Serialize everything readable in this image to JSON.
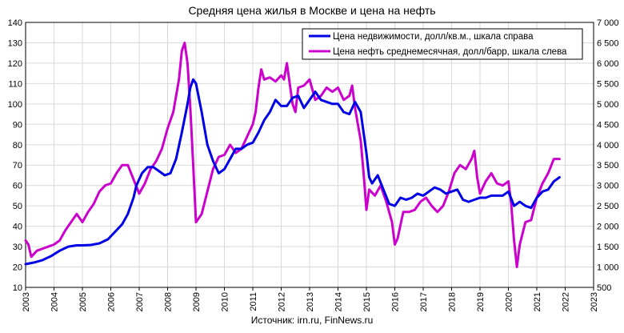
{
  "chart_data": {
    "type": "line",
    "title": "Средняя цена жилья в Москве и цена на нефть",
    "source": "Источник: irn.ru, FinNews.ru",
    "grid": true,
    "legend_position": "top-right",
    "x_ticks": [
      "2003",
      "2004",
      "2005",
      "2006",
      "2007",
      "2008",
      "2009",
      "2010",
      "2011",
      "2012",
      "2013",
      "2014",
      "2015",
      "2016",
      "2017",
      "2018",
      "2019",
      "2020",
      "2021",
      "2022",
      "2023"
    ],
    "xlim": [
      2003,
      2023
    ],
    "ylim_left": [
      10,
      140
    ],
    "yticks_left": [
      "10",
      "20",
      "30",
      "40",
      "50",
      "60",
      "70",
      "80",
      "90",
      "100",
      "110",
      "120",
      "130",
      "140"
    ],
    "ylim_right": [
      500,
      7000
    ],
    "yticks_right": [
      "500",
      "1 000",
      "1 500",
      "2 000",
      "2 500",
      "3 000",
      "3 500",
      "4 000",
      "4 500",
      "5 000",
      "5 500",
      "6 000",
      "6 500",
      "7 000"
    ],
    "series": [
      {
        "name": "Цена недвижимости, долл/кв.м., шкала справа",
        "axis": "right",
        "color": "#0000e6",
        "x": [
          2003.0,
          2003.3,
          2003.6,
          2003.9,
          2004.2,
          2004.5,
          2004.8,
          2005.0,
          2005.3,
          2005.6,
          2005.9,
          2006.2,
          2006.4,
          2006.6,
          2006.8,
          2006.9,
          2007.1,
          2007.3,
          2007.5,
          2007.7,
          2007.9,
          2008.1,
          2008.3,
          2008.5,
          2008.7,
          2008.8,
          2008.9,
          2009.0,
          2009.2,
          2009.4,
          2009.6,
          2009.8,
          2010.0,
          2010.2,
          2010.4,
          2010.6,
          2010.8,
          2011.0,
          2011.2,
          2011.4,
          2011.6,
          2011.8,
          2012.0,
          2012.2,
          2012.4,
          2012.6,
          2012.8,
          2013.0,
          2013.2,
          2013.4,
          2013.6,
          2013.8,
          2014.0,
          2014.2,
          2014.4,
          2014.6,
          2014.8,
          2015.0,
          2015.1,
          2015.2,
          2015.4,
          2015.6,
          2015.8,
          2016.0,
          2016.2,
          2016.4,
          2016.6,
          2016.8,
          2017.0,
          2017.2,
          2017.4,
          2017.6,
          2017.8,
          2018.0,
          2018.2,
          2018.4,
          2018.6,
          2018.8,
          2019.0,
          2019.2,
          2019.4,
          2019.6,
          2019.8,
          2020.0,
          2020.2,
          2020.4,
          2020.6,
          2020.8,
          2021.0,
          2021.2,
          2021.4,
          2021.6,
          2021.8
        ],
        "values": [
          1070,
          1110,
          1170,
          1270,
          1400,
          1500,
          1530,
          1530,
          1540,
          1580,
          1680,
          1900,
          2050,
          2300,
          2700,
          3000,
          3300,
          3450,
          3450,
          3350,
          3250,
          3300,
          3650,
          4300,
          5000,
          5400,
          5600,
          5500,
          4800,
          4000,
          3600,
          3300,
          3400,
          3650,
          3900,
          3900,
          4000,
          4050,
          4300,
          4600,
          4800,
          5100,
          4950,
          4950,
          5150,
          5200,
          4900,
          5100,
          5300,
          5100,
          5050,
          5000,
          5000,
          4800,
          4750,
          5050,
          4800,
          3800,
          3200,
          3050,
          3250,
          2900,
          2550,
          2500,
          2700,
          2650,
          2700,
          2800,
          2750,
          2850,
          2950,
          2900,
          2800,
          2850,
          2900,
          2650,
          2600,
          2650,
          2700,
          2700,
          2750,
          2750,
          2750,
          2850,
          2500,
          2600,
          2500,
          2450,
          2700,
          2850,
          2900,
          3100,
          3200
        ]
      },
      {
        "name": "Цена нефть среднемесячная, долл/барр, шкала слева",
        "axis": "left",
        "color": "#cc00cc",
        "x": [
          2003.0,
          2003.1,
          2003.2,
          2003.4,
          2003.6,
          2003.8,
          2004.0,
          2004.2,
          2004.4,
          2004.6,
          2004.8,
          2005.0,
          2005.2,
          2005.4,
          2005.6,
          2005.8,
          2006.0,
          2006.2,
          2006.4,
          2006.6,
          2006.8,
          2007.0,
          2007.2,
          2007.4,
          2007.6,
          2007.8,
          2008.0,
          2008.2,
          2008.4,
          2008.5,
          2008.6,
          2008.7,
          2008.8,
          2008.9,
          2009.0,
          2009.2,
          2009.4,
          2009.6,
          2009.8,
          2010.0,
          2010.2,
          2010.4,
          2010.6,
          2010.8,
          2011.0,
          2011.1,
          2011.2,
          2011.3,
          2011.4,
          2011.6,
          2011.8,
          2012.0,
          2012.1,
          2012.2,
          2012.4,
          2012.5,
          2012.6,
          2012.8,
          2013.0,
          2013.2,
          2013.4,
          2013.6,
          2013.8,
          2014.0,
          2014.2,
          2014.4,
          2014.5,
          2014.6,
          2014.8,
          2014.9,
          2015.0,
          2015.1,
          2015.3,
          2015.5,
          2015.7,
          2015.9,
          2016.0,
          2016.1,
          2016.3,
          2016.5,
          2016.7,
          2016.9,
          2017.1,
          2017.3,
          2017.5,
          2017.7,
          2017.9,
          2018.1,
          2018.3,
          2018.5,
          2018.7,
          2018.8,
          2018.9,
          2019.0,
          2019.2,
          2019.4,
          2019.6,
          2019.8,
          2020.0,
          2020.1,
          2020.2,
          2020.3,
          2020.4,
          2020.6,
          2020.8,
          2021.0,
          2021.2,
          2021.4,
          2021.6,
          2021.8
        ],
        "values": [
          33,
          31,
          25,
          28,
          29,
          30,
          31,
          33,
          38,
          42,
          46,
          42,
          47,
          51,
          57,
          60,
          61,
          66,
          70,
          70,
          63,
          56,
          61,
          68,
          72,
          78,
          88,
          96,
          112,
          126,
          130,
          120,
          98,
          70,
          42,
          46,
          57,
          68,
          74,
          75,
          80,
          76,
          78,
          84,
          90,
          96,
          108,
          117,
          112,
          113,
          111,
          114,
          112,
          120,
          100,
          96,
          108,
          109,
          112,
          102,
          104,
          108,
          106,
          108,
          102,
          104,
          109,
          98,
          82,
          66,
          48,
          58,
          55,
          60,
          52,
          42,
          31,
          34,
          47,
          47,
          48,
          52,
          54,
          50,
          47,
          50,
          57,
          66,
          70,
          68,
          73,
          77,
          64,
          56,
          62,
          66,
          61,
          60,
          62,
          51,
          33,
          20,
          31,
          42,
          43,
          54,
          61,
          66,
          73,
          73
        ]
      }
    ]
  }
}
